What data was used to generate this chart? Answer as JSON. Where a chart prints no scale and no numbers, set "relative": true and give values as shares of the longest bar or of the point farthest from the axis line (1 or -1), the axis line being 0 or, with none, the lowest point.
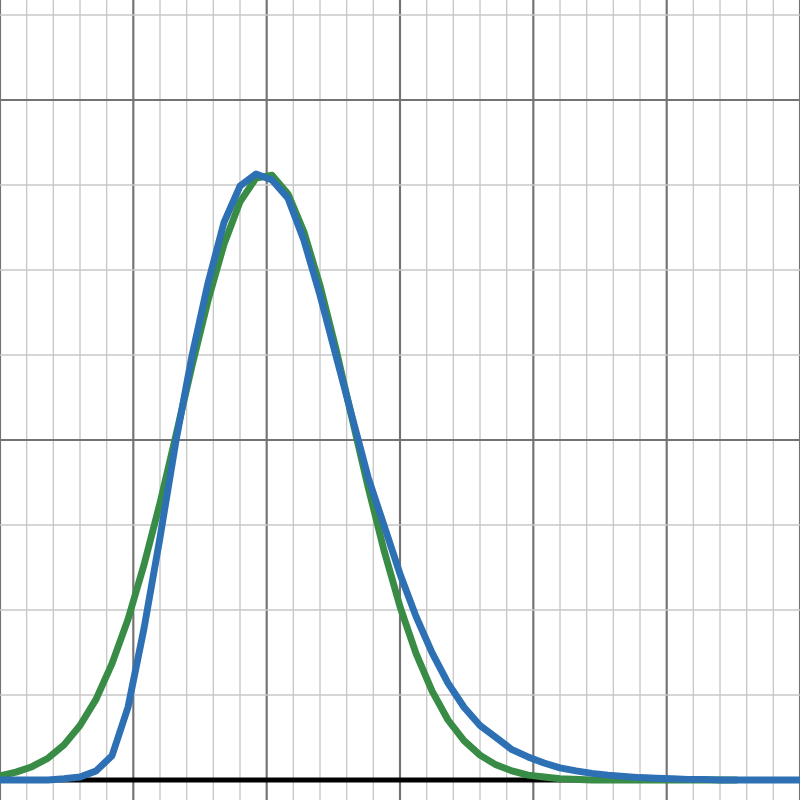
{
  "chart_data": {
    "type": "line",
    "relative": true,
    "grid": true,
    "categories": [
      null,
      null,
      null,
      null,
      null,
      null,
      null,
      null,
      null,
      null,
      null,
      null,
      null,
      null,
      null,
      null,
      null,
      null,
      null,
      null,
      null,
      null,
      null,
      null,
      null,
      null,
      null,
      null,
      null,
      null,
      null,
      null,
      null,
      null,
      null,
      null,
      null,
      null,
      null,
      null,
      null,
      null,
      null,
      null,
      null,
      null,
      null,
      null,
      null,
      null,
      null
    ],
    "series": [
      {
        "color": "#388c46",
        "values": [
          0.007,
          0.013,
          0.022,
          0.036,
          0.058,
          0.09,
          0.133,
          0.192,
          0.265,
          0.355,
          0.457,
          0.569,
          0.683,
          0.791,
          0.884,
          0.954,
          0.993,
          0.998,
          0.967,
          0.904,
          0.816,
          0.711,
          0.597,
          0.484,
          0.379,
          0.286,
          0.209,
          0.147,
          0.099,
          0.065,
          0.041,
          0.025,
          0.015,
          0.008,
          0.005,
          0.002,
          0.001,
          0,
          0,
          0,
          0,
          0,
          0,
          0,
          0,
          0,
          0,
          null,
          null,
          null,
          null
        ]
      },
      {
        "color": "#2d70b3",
        "values": [
          0,
          0,
          0,
          0,
          0.002,
          0.005,
          0.015,
          0.04,
          0.12,
          0.25,
          0.4,
          0.56,
          0.7,
          0.82,
          0.92,
          0.98,
          1.0,
          0.99,
          0.96,
          0.89,
          0.8,
          0.7,
          0.6,
          0.5,
          0.42,
          0.34,
          0.27,
          0.21,
          0.16,
          0.12,
          0.09,
          0.07,
          0.05,
          0.038,
          0.028,
          0.02,
          0.015,
          0.011,
          0.008,
          0.006,
          0.004,
          0.003,
          0.002,
          0.001,
          0.001,
          0,
          0,
          0,
          0,
          0,
          0
        ]
      }
    ]
  }
}
